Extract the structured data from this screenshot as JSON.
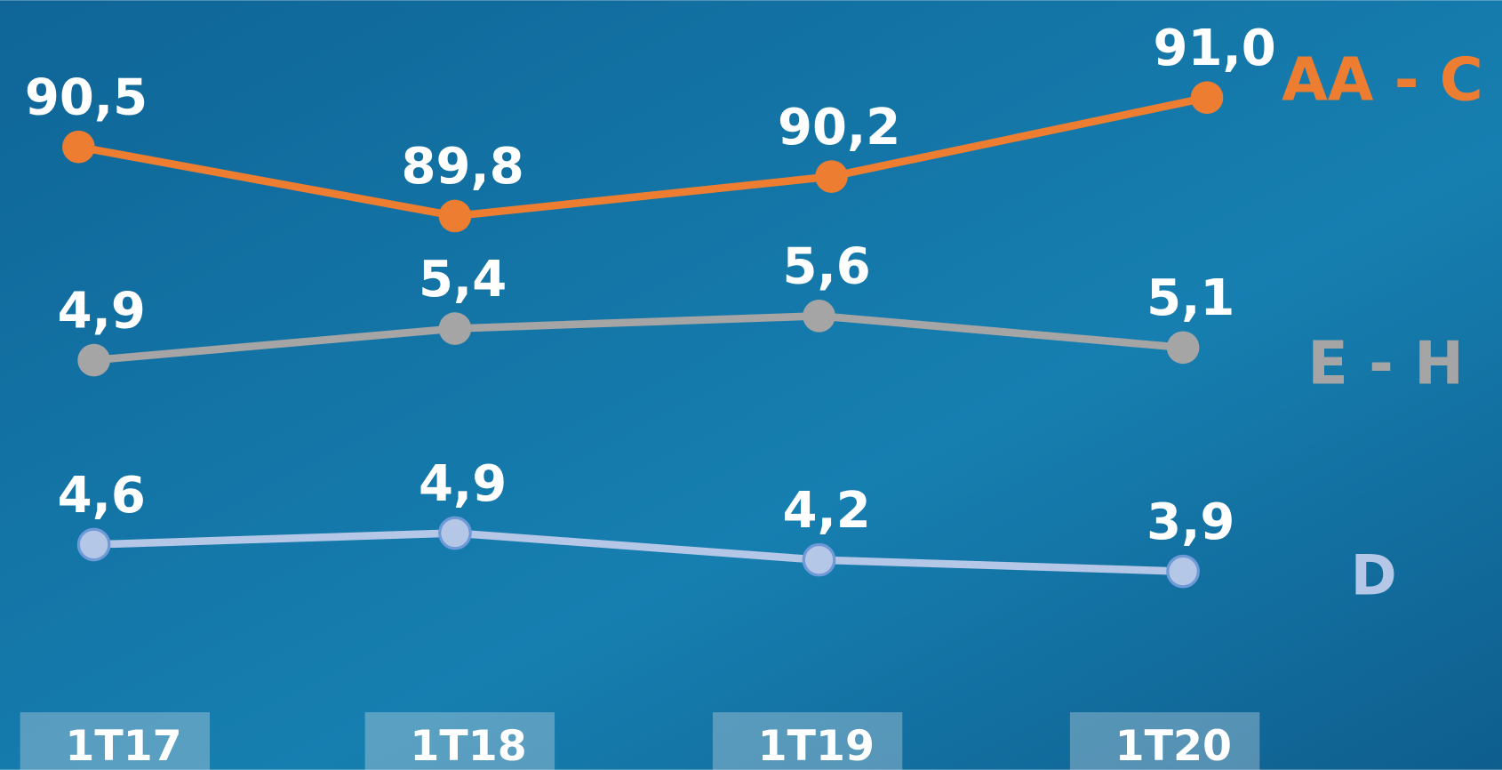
{
  "chart_data": [
    {
      "type": "line",
      "series": [
        {
          "name": "AA - C",
          "color": "#ed7d31",
          "values": [
            90.5,
            89.8,
            90.2,
            91.0
          ],
          "value_labels": [
            "90,5",
            "89,8",
            "90,2",
            "91,0"
          ]
        }
      ],
      "ylim": [
        89.5,
        91.2
      ]
    },
    {
      "type": "line",
      "series": [
        {
          "name": "E - H",
          "color": "#a5a5a5",
          "values": [
            4.9,
            5.4,
            5.6,
            5.1
          ],
          "value_labels": [
            "4,9",
            "5,4",
            "5,6",
            "5,1"
          ]
        }
      ],
      "ylim": [
        4.5,
        6.0
      ]
    },
    {
      "type": "line",
      "categories": [
        "1T17",
        "1T18",
        "1T19",
        "1T20"
      ],
      "series": [
        {
          "name": "D",
          "color": "#b4c7e7",
          "values": [
            4.6,
            4.9,
            4.2,
            3.9
          ],
          "value_labels": [
            "4,6",
            "4,9",
            "4,2",
            "3,9"
          ]
        }
      ],
      "ylim": [
        3.5,
        5.5
      ]
    }
  ]
}
